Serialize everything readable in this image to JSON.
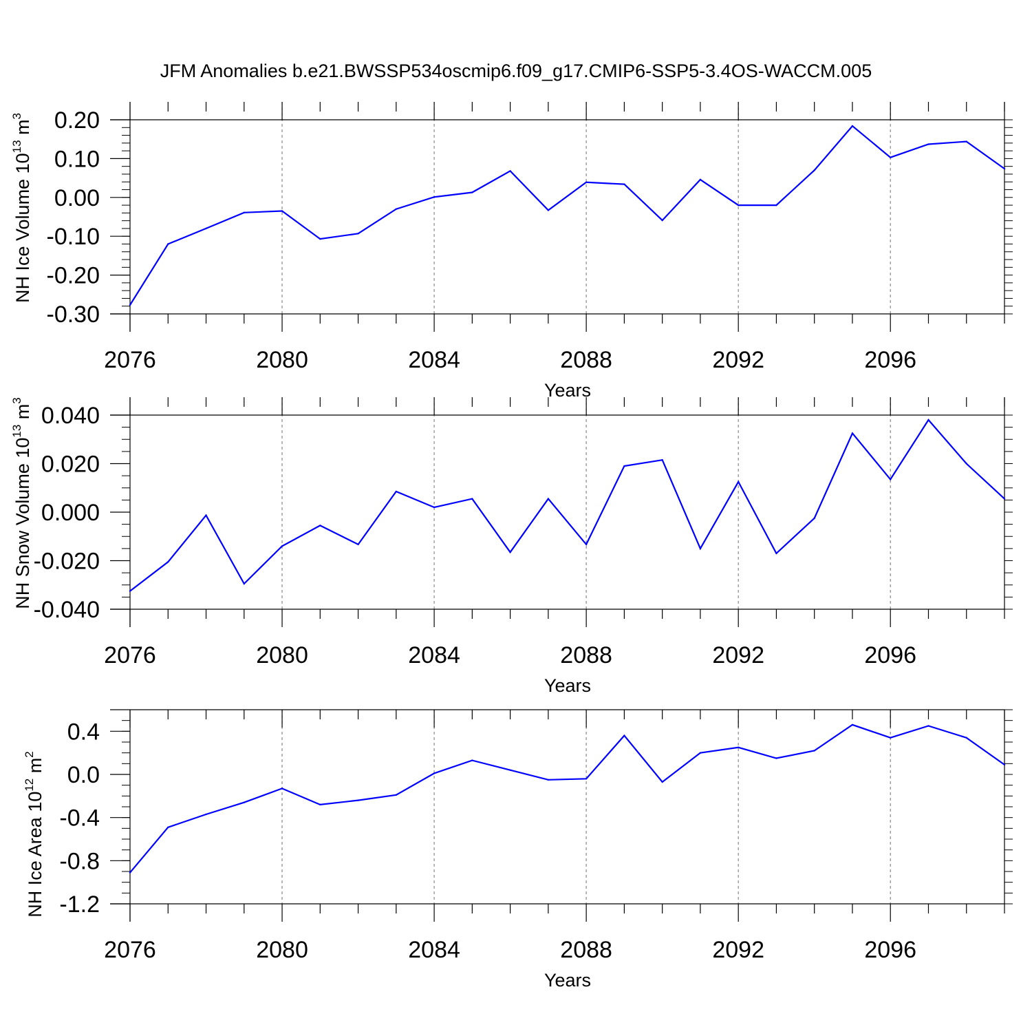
{
  "title": "JFM Anomalies b.e21.BWSSP534oscmip6.f09_g17.CMIP6-SSP5-3.4OS-WACCM.005",
  "line_color": "#0000ff",
  "chart_data": [
    {
      "type": "line",
      "ylabel": "NH Ice Volume 10",
      "ylabel_exp": "13",
      "ylabel_unit": " m",
      "ylabel_unit_exp": "3",
      "xlabel": "Years",
      "xlim": [
        2076,
        2099
      ],
      "ylim": [
        -0.3,
        0.2
      ],
      "yticks": [
        -0.3,
        -0.2,
        -0.1,
        0.0,
        0.1,
        0.2
      ],
      "ytick_labels": [
        "-0.30",
        "-0.20",
        "-0.10",
        "0.00",
        "0.10",
        "0.20"
      ],
      "xticks": [
        2076,
        2080,
        2084,
        2088,
        2092,
        2096
      ],
      "xtick_labels": [
        "2076",
        "2080",
        "2084",
        "2088",
        "2092",
        "2096"
      ],
      "x": [
        2076,
        2077,
        2078,
        2079,
        2080,
        2081,
        2082,
        2083,
        2084,
        2085,
        2086,
        2087,
        2088,
        2089,
        2090,
        2091,
        2092,
        2093,
        2094,
        2095,
        2096,
        2097,
        2098,
        2099
      ],
      "values": [
        -0.277,
        -0.12,
        -0.08,
        -0.039,
        -0.035,
        -0.107,
        -0.093,
        -0.03,
        0.001,
        0.013,
        0.068,
        -0.033,
        0.039,
        0.034,
        -0.059,
        0.046,
        -0.02,
        -0.02,
        0.07,
        0.184,
        0.103,
        0.137,
        0.144,
        0.074
      ]
    },
    {
      "type": "line",
      "ylabel": "NH Snow Volume 10",
      "ylabel_exp": "13",
      "ylabel_unit": " m",
      "ylabel_unit_exp": "3",
      "xlabel": "Years",
      "xlim": [
        2076,
        2099
      ],
      "ylim": [
        -0.04,
        0.04
      ],
      "yticks": [
        -0.04,
        -0.02,
        0.0,
        0.02,
        0.04
      ],
      "ytick_labels": [
        "-0.040",
        "-0.020",
        "0.000",
        "0.020",
        "0.040"
      ],
      "xticks": [
        2076,
        2080,
        2084,
        2088,
        2092,
        2096
      ],
      "xtick_labels": [
        "2076",
        "2080",
        "2084",
        "2088",
        "2092",
        "2096"
      ],
      "x": [
        2076,
        2077,
        2078,
        2079,
        2080,
        2081,
        2082,
        2083,
        2084,
        2085,
        2086,
        2087,
        2088,
        2089,
        2090,
        2091,
        2092,
        2093,
        2094,
        2095,
        2096,
        2097,
        2098,
        2099
      ],
      "values": [
        -0.0325,
        -0.0205,
        -0.0013,
        -0.0295,
        -0.014,
        -0.0055,
        -0.0133,
        0.0085,
        0.002,
        0.0055,
        -0.0165,
        0.0055,
        -0.0133,
        0.019,
        0.0215,
        -0.015,
        0.0125,
        -0.017,
        -0.0025,
        0.0325,
        0.0135,
        0.038,
        0.02,
        0.0055
      ]
    },
    {
      "type": "line",
      "ylabel": "NH Ice Area 10",
      "ylabel_exp": "12",
      "ylabel_unit": " m",
      "ylabel_unit_exp": "2",
      "xlabel": "Years",
      "xlim": [
        2076,
        2099
      ],
      "ylim": [
        -1.2,
        0.6
      ],
      "yticks": [
        -1.2,
        -0.8,
        -0.4,
        0.0,
        0.4
      ],
      "ytick_labels": [
        "-1.2",
        "-0.8",
        "-0.4",
        "0.0",
        "0.4"
      ],
      "xticks": [
        2076,
        2080,
        2084,
        2088,
        2092,
        2096
      ],
      "xtick_labels": [
        "2076",
        "2080",
        "2084",
        "2088",
        "2092",
        "2096"
      ],
      "x": [
        2076,
        2077,
        2078,
        2079,
        2080,
        2081,
        2082,
        2083,
        2084,
        2085,
        2086,
        2087,
        2088,
        2089,
        2090,
        2091,
        2092,
        2093,
        2094,
        2095,
        2096,
        2097,
        2098,
        2099
      ],
      "values": [
        -0.91,
        -0.49,
        -0.37,
        -0.26,
        -0.13,
        -0.28,
        -0.24,
        -0.19,
        0.01,
        0.13,
        0.04,
        -0.05,
        -0.04,
        0.36,
        -0.07,
        0.2,
        0.25,
        0.15,
        0.22,
        0.46,
        0.34,
        0.45,
        0.34,
        0.09
      ]
    }
  ]
}
